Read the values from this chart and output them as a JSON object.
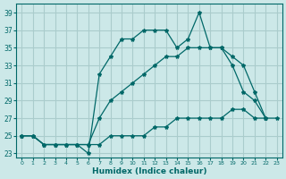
{
  "xlabel": "Humidex (Indice chaleur)",
  "bg_color": "#cce8e8",
  "grid_color": "#aacccc",
  "line_color": "#006868",
  "xlim": [
    -0.5,
    23.5
  ],
  "ylim": [
    22.5,
    40
  ],
  "xticks": [
    0,
    1,
    2,
    3,
    4,
    5,
    6,
    7,
    8,
    9,
    10,
    11,
    12,
    13,
    14,
    15,
    16,
    17,
    18,
    19,
    20,
    21,
    22,
    23
  ],
  "yticks": [
    23,
    25,
    27,
    29,
    31,
    33,
    35,
    37,
    39
  ],
  "series1_x": [
    0,
    1,
    2,
    3,
    4,
    5,
    6,
    7,
    8,
    9,
    10,
    11,
    12,
    13,
    14,
    15,
    16,
    17,
    18,
    19,
    20,
    21,
    22
  ],
  "series1_y": [
    25,
    25,
    24,
    24,
    24,
    24,
    23,
    32,
    34,
    36,
    36,
    37,
    37,
    37,
    35,
    36,
    39,
    35,
    35,
    33,
    30,
    29,
    27
  ],
  "series2_x": [
    0,
    1,
    2,
    3,
    4,
    5,
    6,
    7,
    8,
    9,
    10,
    11,
    12,
    13,
    14,
    15,
    16,
    17,
    18,
    19,
    20,
    21,
    22
  ],
  "series2_y": [
    25,
    25,
    24,
    24,
    24,
    24,
    24,
    27,
    29,
    30,
    31,
    32,
    33,
    34,
    34,
    35,
    35,
    35,
    35,
    34,
    33,
    30,
    27
  ],
  "series3_x": [
    0,
    1,
    2,
    3,
    4,
    5,
    6,
    7,
    8,
    9,
    10,
    11,
    12,
    13,
    14,
    15,
    16,
    17,
    18,
    19,
    20,
    21,
    22,
    23
  ],
  "series3_y": [
    25,
    25,
    24,
    24,
    24,
    24,
    24,
    24,
    25,
    25,
    25,
    25,
    26,
    26,
    27,
    27,
    27,
    27,
    27,
    28,
    28,
    27,
    27,
    27
  ]
}
